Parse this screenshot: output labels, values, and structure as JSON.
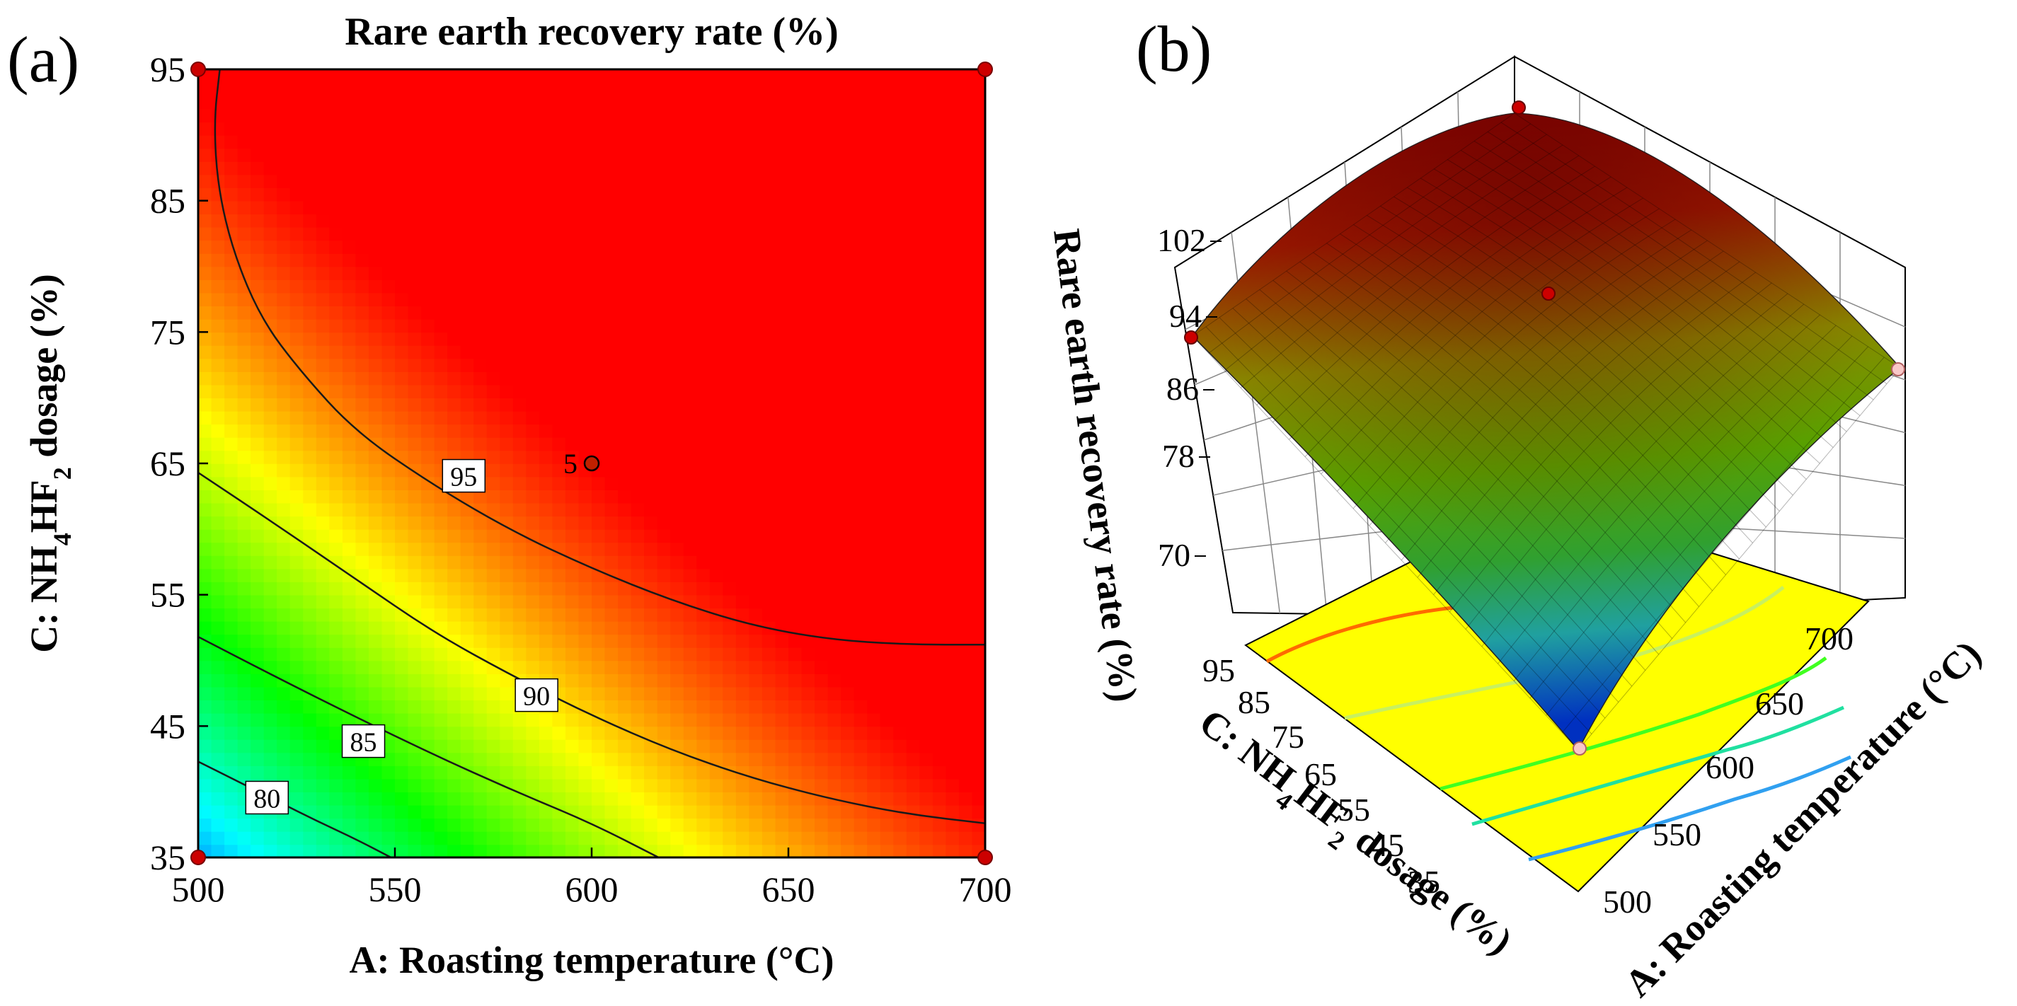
{
  "chart_data": [
    {
      "panel": "(a)",
      "type": "contour",
      "title": "Rare earth recovery rate (%)",
      "xlabel": "A: Roasting temperature (°C)",
      "ylabel": "C: NH4HF2 dosage (%)",
      "ylabel_parts": {
        "pre": "C: NH",
        "sub1": "4",
        "mid": "HF",
        "sub2": "2",
        "post": " dosage (%)"
      },
      "xlim": [
        500,
        700
      ],
      "ylim": [
        35,
        95
      ],
      "x_ticks": [
        "500",
        "550",
        "600",
        "650",
        "700"
      ],
      "x_tick_values": [
        500,
        550,
        600,
        650,
        700
      ],
      "y_ticks": [
        "35",
        "45",
        "55",
        "65",
        "75",
        "85",
        "95"
      ],
      "y_tick_values": [
        35,
        45,
        55,
        65,
        75,
        85,
        95
      ],
      "contours": [
        {
          "level": "80",
          "points": [
            [
              500,
              42.3
            ],
            [
              510,
              40.8
            ],
            [
              520,
              39.3
            ],
            [
              530,
              37.8
            ],
            [
              540,
              36.4
            ],
            [
              549,
              35
            ]
          ],
          "label_at": [
            517.5,
            39.5
          ]
        },
        {
          "level": "85",
          "points": [
            [
              500,
              51.8
            ],
            [
              520,
              48.7
            ],
            [
              540,
              45.7
            ],
            [
              560,
              42.8
            ],
            [
              580,
              40.1
            ],
            [
              600,
              37.6
            ],
            [
              617,
              35
            ]
          ],
          "label_at": [
            542,
            43.8
          ]
        },
        {
          "level": "90",
          "points": [
            [
              500,
              64.3
            ],
            [
              520,
              60.3
            ],
            [
              540,
              56.2
            ],
            [
              560,
              52.1
            ],
            [
              580,
              48.8
            ],
            [
              600,
              45.8
            ],
            [
              620,
              43.2
            ],
            [
              640,
              41.1
            ],
            [
              660,
              39.5
            ],
            [
              680,
              38.3
            ],
            [
              700,
              37.6
            ]
          ],
          "label_at": [
            586,
            47.3
          ]
        },
        {
          "level": "95",
          "points": [
            [
              505.5,
              95
            ],
            [
              504,
              91
            ],
            [
              505,
              86
            ],
            [
              509,
              81
            ],
            [
              516,
              76
            ],
            [
              526,
              72
            ],
            [
              540,
              67.4
            ],
            [
              560,
              63.3
            ],
            [
              580,
              59.8
            ],
            [
              600,
              57
            ],
            [
              620,
              54.6
            ],
            [
              640,
              52.7
            ],
            [
              660,
              51.6
            ],
            [
              680,
              51.2
            ],
            [
              700,
              51.2
            ]
          ],
          "label_at": [
            567.5,
            64
          ]
        }
      ],
      "center_point": {
        "x": 600,
        "y": 65,
        "label": "5"
      },
      "corner_points": [
        [
          500,
          95
        ],
        [
          700,
          95
        ],
        [
          500,
          35
        ],
        [
          700,
          35
        ]
      ],
      "colorscale": [
        "#0000ff",
        "#00ffff",
        "#00ff00",
        "#ffff00",
        "#ff0000"
      ]
    },
    {
      "panel": "(b)",
      "type": "surface",
      "zlabel": "Rare earth recovery rate (%)",
      "xlabel": "A: Roasting temperature (°C)",
      "ylabel": "C: NH4HF2 dosage (%)",
      "ylabel_parts": {
        "pre": "C: NH",
        "sub1": "4",
        "mid": "HF",
        "sub2": "2",
        "post": " dosage (%)"
      },
      "z_ticks": [
        "70",
        "78",
        "86",
        "94",
        "102"
      ],
      "x_ticks": [
        "500",
        "550",
        "600",
        "650",
        "700"
      ],
      "y_ticks": [
        "35",
        "45",
        "55",
        "65",
        "75",
        "85",
        "95"
      ],
      "surface_corners": {
        "A500_C95": 93.0,
        "A700_C95": 100.8,
        "A500_C35": 77.5,
        "A700_C35": 91.2,
        "center": 99.0
      }
    }
  ]
}
